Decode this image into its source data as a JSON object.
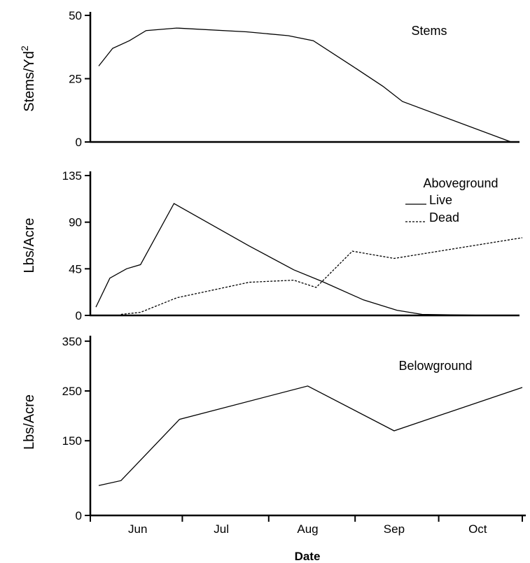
{
  "chart_data": [
    {
      "type": "line",
      "label": "Stems",
      "ylabel": "Stems/Yd",
      "ylabel_sup": "2",
      "ylim": [
        0,
        50
      ],
      "yticks": [
        0,
        25,
        50
      ],
      "series": [
        {
          "style": "solid",
          "points": [
            {
              "x": "1-Jun",
              "y": 30
            },
            {
              "x": "6-Jun",
              "y": 37
            },
            {
              "x": "12-Jun",
              "y": 40
            },
            {
              "x": "18-Jun",
              "y": 44
            },
            {
              "x": "29-Jun",
              "y": 45
            },
            {
              "x": "24-Jul",
              "y": 43.5
            },
            {
              "x": "8-Aug",
              "y": 42
            },
            {
              "x": "17-Aug",
              "y": 40
            },
            {
              "x": "31-Aug",
              "y": 30
            },
            {
              "x": "11-Sep",
              "y": 22
            },
            {
              "x": "18-Sep",
              "y": 16
            },
            {
              "x": "27-Oct",
              "y": 0
            }
          ]
        }
      ]
    },
    {
      "type": "line",
      "label": "Aboveground",
      "ylabel": "Lbs/Acre",
      "ylim": [
        0,
        135
      ],
      "yticks": [
        0,
        45,
        90,
        135
      ],
      "legend": {
        "title": "Aboveground",
        "position": "top-right"
      },
      "series": [
        {
          "name": "Live",
          "style": "solid",
          "points": [
            {
              "x": "31-May",
              "y": 8
            },
            {
              "x": "5-Jun",
              "y": 36
            },
            {
              "x": "11-Jun",
              "y": 45
            },
            {
              "x": "16-Jun",
              "y": 49
            },
            {
              "x": "28-Jun",
              "y": 108
            },
            {
              "x": "25-Jul",
              "y": 67
            },
            {
              "x": "10-Aug",
              "y": 44
            },
            {
              "x": "20-Aug",
              "y": 33
            },
            {
              "x": "4-Sep",
              "y": 15
            },
            {
              "x": "16-Sep",
              "y": 5
            },
            {
              "x": "25-Sep",
              "y": 1
            },
            {
              "x": "21-Oct",
              "y": 0
            }
          ]
        },
        {
          "name": "Dead",
          "style": "dashed",
          "points": [
            {
              "x": "9-Jun",
              "y": 1
            },
            {
              "x": "16-Jun",
              "y": 3
            },
            {
              "x": "29-Jun",
              "y": 17
            },
            {
              "x": "25-Jul",
              "y": 32
            },
            {
              "x": "10-Aug",
              "y": 34
            },
            {
              "x": "18-Aug",
              "y": 27
            },
            {
              "x": "31-Aug",
              "y": 62
            },
            {
              "x": "15-Sep",
              "y": 55
            },
            {
              "x": "31-Oct",
              "y": 75
            }
          ]
        }
      ]
    },
    {
      "type": "line",
      "label": "Belowground",
      "ylabel": "Lbs/Acre",
      "ylim": [
        0,
        375
      ],
      "yticks": [
        0,
        150,
        250,
        350
      ],
      "xlabel": "Date",
      "xticks": [
        "Jun",
        "Jul",
        "Aug",
        "Sep",
        "Oct"
      ],
      "series": [
        {
          "style": "solid",
          "points": [
            {
              "x": "1-Jun",
              "y": 60
            },
            {
              "x": "9-Jun",
              "y": 70
            },
            {
              "x": "30-Jun",
              "y": 193
            },
            {
              "x": "15-Aug",
              "y": 260
            },
            {
              "x": "15-Sep",
              "y": 170
            },
            {
              "x": "31-Oct",
              "y": 257
            }
          ]
        }
      ]
    }
  ]
}
